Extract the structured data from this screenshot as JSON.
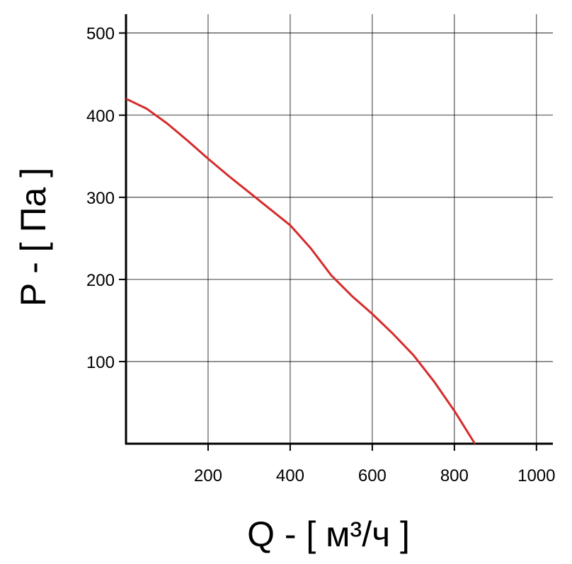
{
  "chart_data": {
    "type": "line",
    "x_label": "Q - [ м³/ч ]",
    "y_label": "P - [ Па ]",
    "xlim": [
      0,
      1040
    ],
    "ylim": [
      0,
      523
    ],
    "xticks": [
      200,
      400,
      600,
      800,
      1000
    ],
    "yticks": [
      100,
      200,
      300,
      400,
      500
    ],
    "grid": true,
    "series": [
      {
        "color": "#d62b2b",
        "x": [
          0,
          50,
          100,
          150,
          200,
          250,
          300,
          350,
          400,
          450,
          500,
          550,
          600,
          650,
          700,
          750,
          800,
          850
        ],
        "values": [
          420,
          408,
          390,
          369,
          347,
          326,
          306,
          286,
          266,
          238,
          205,
          180,
          158,
          134,
          108,
          76,
          40,
          0
        ]
      }
    ]
  }
}
